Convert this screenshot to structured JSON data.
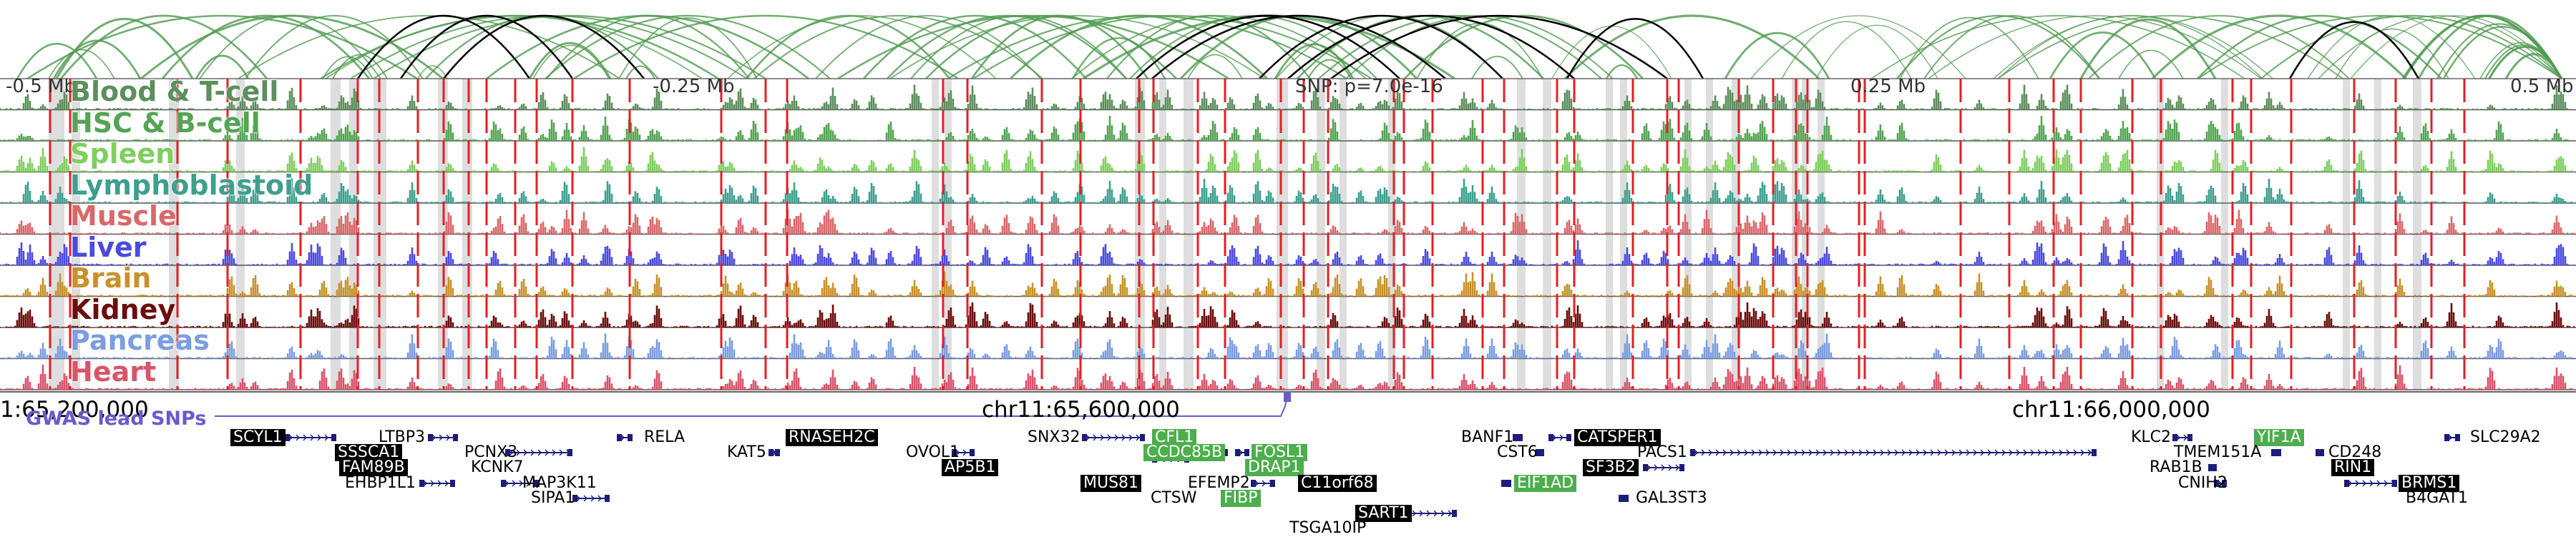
{
  "axis": {
    "left": "-0.5 Mb",
    "center_left": "-0.25 Mb",
    "snp": "SNP: p=7.0e-16",
    "center_right": "0.25 Mb",
    "right": "0.5 Mb"
  },
  "coords": {
    "left": "1:65,200,000",
    "middle": "chr11:65,600,000",
    "right": "chr11:66,000,000"
  },
  "gwas_label": "GWAS lead SNPs",
  "tracks": [
    {
      "label": "Blood & T-cell",
      "color": "#5c8f5c"
    },
    {
      "label": "HSC & B-cell",
      "color": "#55a455"
    },
    {
      "label": "Spleen",
      "color": "#7fcf5f"
    },
    {
      "label": "Lymphoblastoid",
      "color": "#3f9f8f"
    },
    {
      "label": "Muscle",
      "color": "#d9686a"
    },
    {
      "label": "Liver",
      "color": "#4a4ae0"
    },
    {
      "label": "Brain",
      "color": "#c8922b"
    },
    {
      "label": "Kidney",
      "color": "#6b0d0d"
    },
    {
      "label": "Pancreas",
      "color": "#7b9ee0"
    },
    {
      "label": "Heart",
      "color": "#d9546a"
    }
  ],
  "colors": {
    "red_marker": "#e21f26",
    "grey_band": "#d8d8d8",
    "arc_green": "#4f9a4f",
    "arc_black": "#000000",
    "gene_line": "#1c1c7a"
  },
  "genes": [
    {
      "name": "SCYL1",
      "style": "black"
    },
    {
      "name": "LTBP3",
      "style": "plain"
    },
    {
      "name": "SSSCA1",
      "style": "black"
    },
    {
      "name": "FAM89B",
      "style": "black"
    },
    {
      "name": "EHBP1L1",
      "style": "plain"
    },
    {
      "name": "PCNX3",
      "style": "plain"
    },
    {
      "name": "KCNK7",
      "style": "plain"
    },
    {
      "name": "MAP3K11",
      "style": "plain"
    },
    {
      "name": "SIPA1",
      "style": "plain"
    },
    {
      "name": "RELA",
      "style": "plain"
    },
    {
      "name": "RNASEH2C",
      "style": "black"
    },
    {
      "name": "KAT5",
      "style": "plain"
    },
    {
      "name": "OVOL1",
      "style": "plain"
    },
    {
      "name": "AP5B1",
      "style": "black"
    },
    {
      "name": "SNX32",
      "style": "plain"
    },
    {
      "name": "CFL1",
      "style": "green"
    },
    {
      "name": "CCDC85B",
      "style": "green"
    },
    {
      "name": "FOSL1",
      "style": "green"
    },
    {
      "name": "MUS81",
      "style": "black"
    },
    {
      "name": "EFEMP2",
      "style": "plain"
    },
    {
      "name": "DRAP1",
      "style": "green"
    },
    {
      "name": "C11orf68",
      "style": "black"
    },
    {
      "name": "CTSW",
      "style": "plain"
    },
    {
      "name": "FIBP",
      "style": "green"
    },
    {
      "name": "SART1",
      "style": "black"
    },
    {
      "name": "TSGA10IP",
      "style": "plain"
    },
    {
      "name": "BANF1",
      "style": "plain"
    },
    {
      "name": "CATSPER1",
      "style": "black"
    },
    {
      "name": "CST6",
      "style": "plain"
    },
    {
      "name": "PACS1",
      "style": "plain"
    },
    {
      "name": "SF3B2",
      "style": "black"
    },
    {
      "name": "EIF1AD",
      "style": "green"
    },
    {
      "name": "GAL3ST3",
      "style": "plain"
    },
    {
      "name": "KLC2",
      "style": "plain"
    },
    {
      "name": "YIF1A",
      "style": "green"
    },
    {
      "name": "SLC29A2",
      "style": "plain"
    },
    {
      "name": "TMEM151A",
      "style": "plain"
    },
    {
      "name": "CD248",
      "style": "plain"
    },
    {
      "name": "RAB1B",
      "style": "plain"
    },
    {
      "name": "RIN1",
      "style": "black"
    },
    {
      "name": "CNIH2",
      "style": "plain"
    },
    {
      "name": "BRMS1",
      "style": "black"
    },
    {
      "name": "B4GAT1",
      "style": "plain"
    }
  ]
}
